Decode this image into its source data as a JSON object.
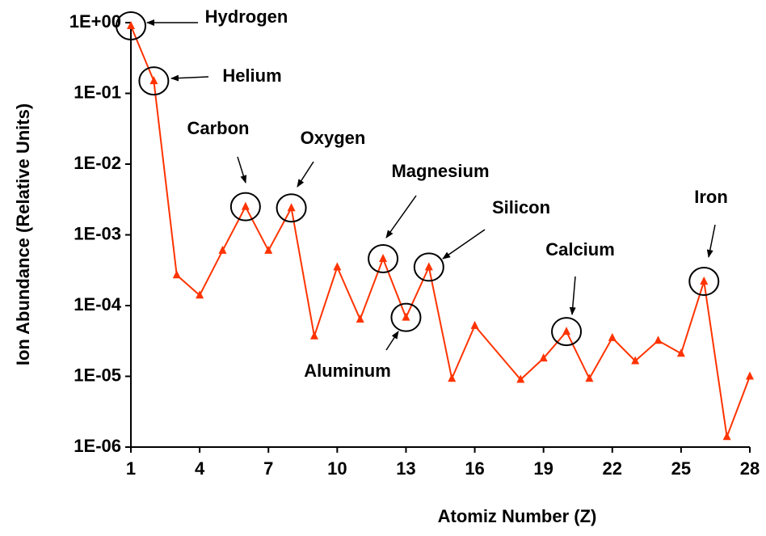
{
  "chart_data": {
    "type": "line",
    "x_label": "Atomiz Number (Z)",
    "y_label": "Ion Abundance (Relative Units)",
    "log_y": true,
    "grid": false,
    "x": [
      1,
      2,
      3,
      4,
      5,
      6,
      7,
      8,
      9,
      10,
      11,
      12,
      13,
      14,
      15,
      16,
      18,
      19,
      20,
      21,
      22,
      23,
      24,
      25,
      26,
      27,
      28
    ],
    "series": [
      {
        "name": "Ion Abundance",
        "color": "#ff3300",
        "values": [
          0.9,
          0.15,
          0.00027,
          0.00014,
          0.0006,
          0.0025,
          0.0006,
          0.0024,
          3.7e-05,
          0.00035,
          6.4e-05,
          0.00046,
          6.8e-05,
          0.00035,
          9.3e-06,
          5.2e-05,
          9e-06,
          1.8e-05,
          4.3e-05,
          9.3e-06,
          3.5e-05,
          1.65e-05,
          3.2e-05,
          2.1e-05,
          0.00022,
          1.4e-06,
          1e-05
        ]
      }
    ],
    "xlim": [
      1,
      28
    ],
    "xticks": [
      1,
      4,
      7,
      10,
      13,
      16,
      19,
      22,
      25,
      28
    ],
    "ylim": [
      1e-06,
      1
    ],
    "yticks": [
      {
        "value": 1e-06,
        "label": "1E-06"
      },
      {
        "value": 1e-05,
        "label": "1E-05"
      },
      {
        "value": 0.0001,
        "label": "1E-04"
      },
      {
        "value": 0.001,
        "label": "1E-03"
      },
      {
        "value": 0.01,
        "label": "1E-02"
      },
      {
        "value": 0.1,
        "label": "1E-01"
      },
      {
        "value": 1,
        "label": "1E+00"
      }
    ],
    "annotations": [
      "Hydrogen",
      "Helium",
      "Carbon",
      "Oxygen",
      "Magnesium",
      "Silicon",
      "Aluminum",
      "Calcium",
      "Iron"
    ]
  }
}
